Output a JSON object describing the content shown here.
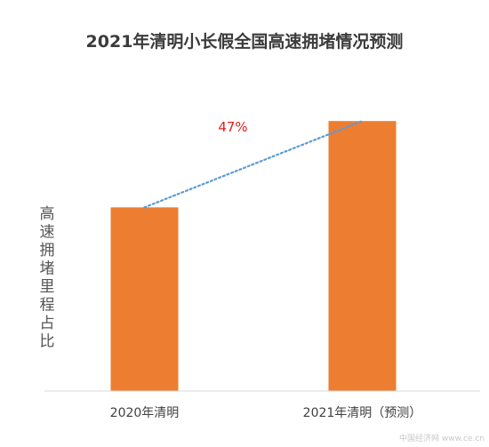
{
  "chart_data": {
    "type": "bar",
    "title": "2021年清明小长假全国高速拥堵情况预测",
    "ylabel": "高速拥堵里程占比",
    "xlabel": "",
    "categories": [
      "2020年清明",
      "2021年清明（预测）"
    ],
    "values": [
      1.0,
      1.47
    ],
    "ylim": [
      0,
      1.5
    ],
    "bar_color": "#ed7d31",
    "trend_line": {
      "style": "dotted",
      "color": "#5b9bd5"
    },
    "annotation": {
      "text": "47%",
      "color": "#e3201b"
    },
    "grid": false,
    "legend": "none"
  },
  "watermark": "中国经济网 www.ce.cn"
}
